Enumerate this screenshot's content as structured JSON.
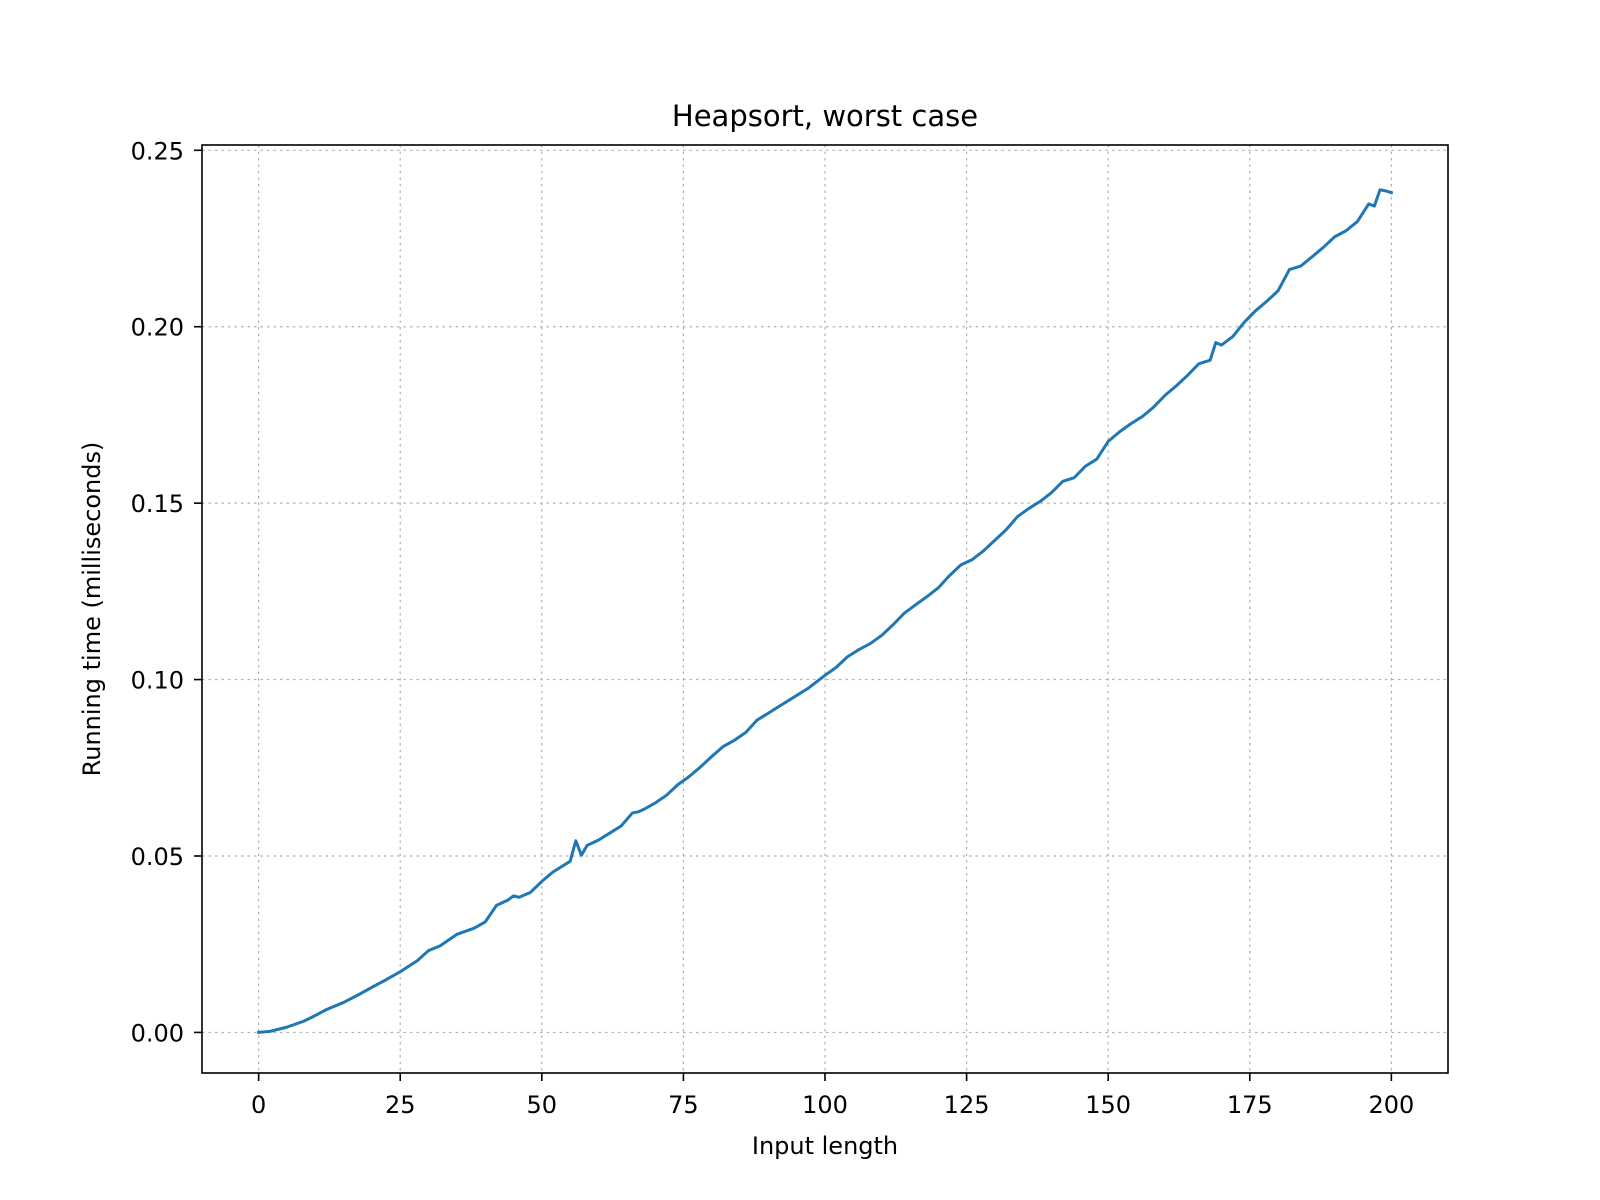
{
  "chart_data": {
    "type": "line",
    "title": "Heapsort, worst case",
    "xlabel": "Input length",
    "ylabel": "Running time (milliseconds)",
    "xlim": [
      -10,
      210
    ],
    "ylim": [
      -0.0115,
      0.2515
    ],
    "xticks": [
      0,
      25,
      50,
      75,
      100,
      125,
      150,
      175,
      200
    ],
    "xtick_labels": [
      "0",
      "25",
      "50",
      "75",
      "100",
      "125",
      "150",
      "175",
      "200"
    ],
    "yticks": [
      0.0,
      0.05,
      0.1,
      0.15,
      0.2,
      0.25
    ],
    "ytick_labels": [
      "0.00",
      "0.05",
      "0.10",
      "0.15",
      "0.20",
      "0.25"
    ],
    "grid": true,
    "legend": false,
    "series": [
      {
        "color": "#1f77b4",
        "points": [
          [
            0,
            0.0
          ],
          [
            2,
            0.0003
          ],
          [
            5,
            0.0015
          ],
          [
            8,
            0.0032
          ],
          [
            10,
            0.0048
          ],
          [
            12,
            0.0065
          ],
          [
            15,
            0.0085
          ],
          [
            18,
            0.011
          ],
          [
            20,
            0.0128
          ],
          [
            22,
            0.0145
          ],
          [
            25,
            0.0172
          ],
          [
            28,
            0.0203
          ],
          [
            30,
            0.0232
          ],
          [
            32,
            0.0245
          ],
          [
            35,
            0.0278
          ],
          [
            38,
            0.0295
          ],
          [
            40,
            0.0313
          ],
          [
            42,
            0.036
          ],
          [
            44,
            0.0375
          ],
          [
            45,
            0.0387
          ],
          [
            46,
            0.0383
          ],
          [
            48,
            0.0397
          ],
          [
            50,
            0.0428
          ],
          [
            52,
            0.0455
          ],
          [
            55,
            0.0485
          ],
          [
            56,
            0.0543
          ],
          [
            57,
            0.0502
          ],
          [
            58,
            0.053
          ],
          [
            60,
            0.0545
          ],
          [
            62,
            0.0565
          ],
          [
            64,
            0.0585
          ],
          [
            66,
            0.0622
          ],
          [
            67,
            0.0625
          ],
          [
            68,
            0.0632
          ],
          [
            70,
            0.065
          ],
          [
            72,
            0.0672
          ],
          [
            74,
            0.0702
          ],
          [
            76,
            0.0725
          ],
          [
            78,
            0.0752
          ],
          [
            80,
            0.0782
          ],
          [
            82,
            0.081
          ],
          [
            84,
            0.0828
          ],
          [
            86,
            0.085
          ],
          [
            88,
            0.0885
          ],
          [
            90,
            0.0905
          ],
          [
            92,
            0.0925
          ],
          [
            95,
            0.0955
          ],
          [
            97,
            0.0975
          ],
          [
            100,
            0.1012
          ],
          [
            102,
            0.1035
          ],
          [
            104,
            0.1065
          ],
          [
            106,
            0.1085
          ],
          [
            108,
            0.1102
          ],
          [
            110,
            0.1125
          ],
          [
            112,
            0.1155
          ],
          [
            114,
            0.1188
          ],
          [
            116,
            0.1212
          ],
          [
            118,
            0.1235
          ],
          [
            120,
            0.126
          ],
          [
            122,
            0.1295
          ],
          [
            124,
            0.1325
          ],
          [
            126,
            0.134
          ],
          [
            128,
            0.1365
          ],
          [
            130,
            0.1395
          ],
          [
            132,
            0.1425
          ],
          [
            134,
            0.1462
          ],
          [
            136,
            0.1485
          ],
          [
            138,
            0.1505
          ],
          [
            140,
            0.153
          ],
          [
            142,
            0.1562
          ],
          [
            144,
            0.1572
          ],
          [
            146,
            0.1605
          ],
          [
            148,
            0.1625
          ],
          [
            150,
            0.1675
          ],
          [
            152,
            0.1702
          ],
          [
            154,
            0.1725
          ],
          [
            156,
            0.1745
          ],
          [
            158,
            0.1772
          ],
          [
            160,
            0.1805
          ],
          [
            162,
            0.1832
          ],
          [
            164,
            0.1862
          ],
          [
            166,
            0.1895
          ],
          [
            168,
            0.1905
          ],
          [
            169,
            0.1955
          ],
          [
            170,
            0.1948
          ],
          [
            172,
            0.1972
          ],
          [
            174,
            0.2012
          ],
          [
            176,
            0.2045
          ],
          [
            178,
            0.2072
          ],
          [
            180,
            0.2102
          ],
          [
            182,
            0.2162
          ],
          [
            184,
            0.2172
          ],
          [
            186,
            0.2198
          ],
          [
            188,
            0.2225
          ],
          [
            190,
            0.2255
          ],
          [
            192,
            0.2272
          ],
          [
            194,
            0.2298
          ],
          [
            196,
            0.2348
          ],
          [
            197,
            0.2342
          ],
          [
            198,
            0.2388
          ],
          [
            199,
            0.2385
          ],
          [
            200,
            0.238
          ]
        ]
      }
    ]
  }
}
